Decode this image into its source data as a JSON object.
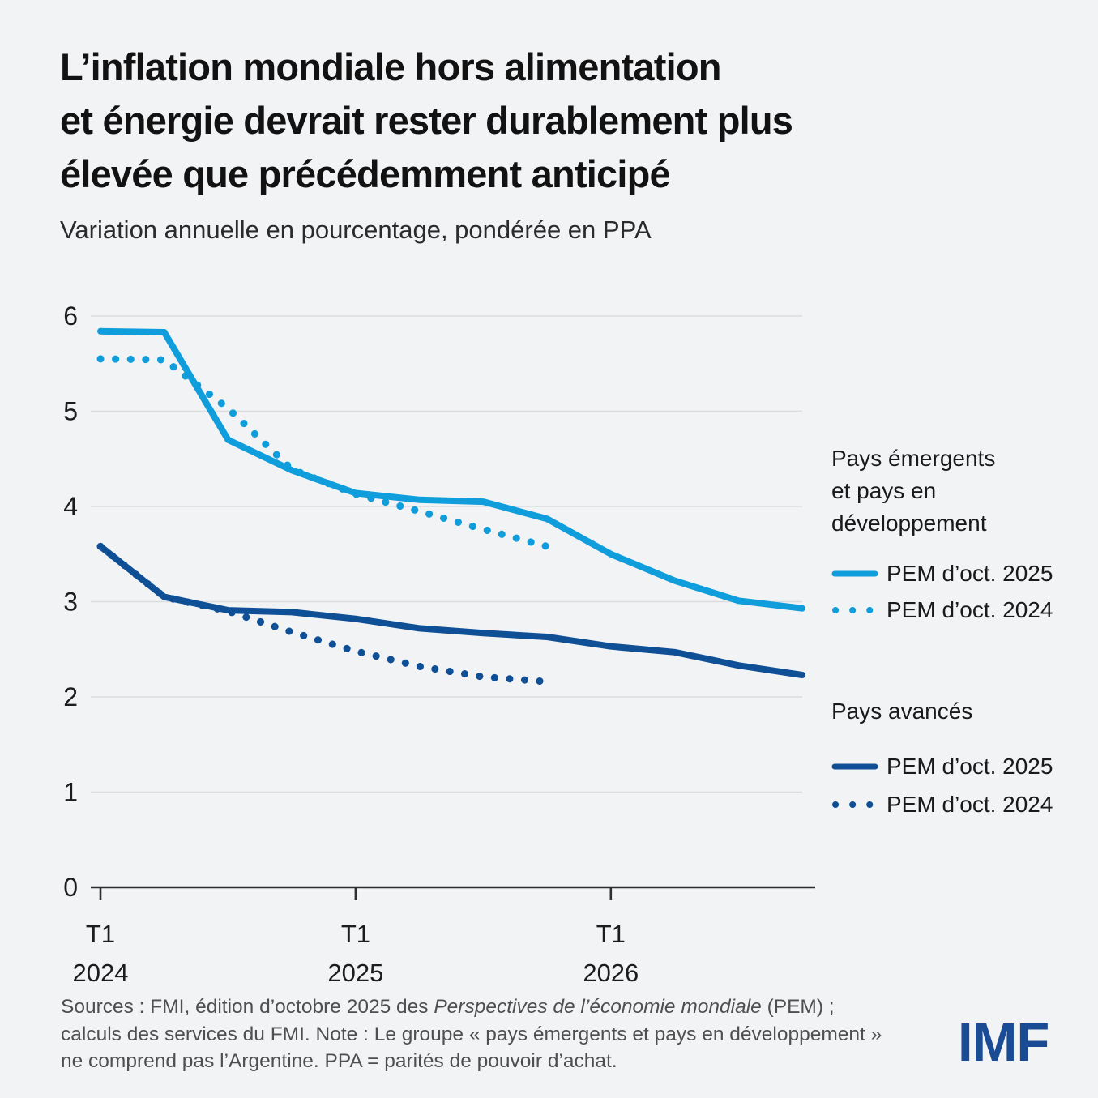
{
  "colors": {
    "background": "#F2F3F5",
    "light_blue": "#0F9DDB",
    "dark_blue": "#0F4F96",
    "imf_blue": "#1A4C96",
    "gridline": "#DBDCDE",
    "axis": "#2E2E2E"
  },
  "header": {
    "title_lines": [
      "L’inflation mondiale hors alimentation",
      "et énergie devrait rester durablement plus",
      "élevée que précédemment anticipé"
    ],
    "subtitle": "Variation annuelle en pourcentage, pondérée en PPA"
  },
  "chart_data": {
    "type": "line",
    "title": "L’inflation mondiale hors alimentation et énergie devrait rester durablement plus élevée que précédemment anticipé",
    "subtitle": "Variation annuelle en pourcentage, pondérée en PPA",
    "xlabel": "",
    "ylabel": "",
    "ylim": [
      0,
      6.3
    ],
    "yticks": [
      0,
      1,
      2,
      3,
      4,
      5,
      6
    ],
    "grid": true,
    "legend_position": "right",
    "categories": [
      "T1 2024",
      "T2 2024",
      "T3 2024",
      "T4 2024",
      "T1 2025",
      "T2 2025",
      "T3 2025",
      "T4 2025",
      "T1 2026",
      "T2 2026",
      "T3 2026",
      "T4 2026"
    ],
    "xticks": [
      {
        "index": 0,
        "line1": "T1",
        "line2": "2024"
      },
      {
        "index": 4,
        "line1": "T1",
        "line2": "2025"
      },
      {
        "index": 8,
        "line1": "T1",
        "line2": "2026"
      }
    ],
    "series": [
      {
        "name": "Pays émergents et pays en développement — PEM d’oct. 2025",
        "group": "emerging",
        "style": "solid",
        "color": "#0F9DDB",
        "values": [
          5.84,
          5.83,
          4.7,
          4.38,
          4.14,
          4.07,
          4.05,
          3.87,
          3.5,
          3.22,
          3.01,
          2.93
        ]
      },
      {
        "name": "Pays émergents et pays en développement — PEM d’oct. 2024",
        "group": "emerging",
        "style": "dotted",
        "color": "#0F9DDB",
        "values": [
          5.55,
          5.54,
          5.03,
          4.39,
          4.13,
          3.95,
          3.76,
          3.58
        ]
      },
      {
        "name": "Pays avancés — PEM d’oct. 2025",
        "group": "advanced",
        "style": "solid",
        "color": "#0F4F96",
        "values": [
          3.58,
          3.05,
          2.91,
          2.89,
          2.82,
          2.72,
          2.67,
          2.63,
          2.53,
          2.47,
          2.33,
          2.23
        ]
      },
      {
        "name": "Pays avancés — PEM d’oct. 2024",
        "group": "advanced",
        "style": "dotted",
        "color": "#0F4F96",
        "values": [
          3.58,
          3.05,
          2.9,
          2.68,
          2.48,
          2.32,
          2.21,
          2.16
        ]
      }
    ]
  },
  "legend": {
    "groups": [
      {
        "title_lines": [
          "Pays émergents",
          "et pays en",
          "développement"
        ],
        "color": "#0F9DDB",
        "items": [
          {
            "label": "PEM d’oct. 2025",
            "style": "solid"
          },
          {
            "label": "PEM d’oct. 2024",
            "style": "dotted"
          }
        ]
      },
      {
        "title_lines": [
          "Pays avancés"
        ],
        "color": "#0F4F96",
        "items": [
          {
            "label": "PEM d’oct. 2025",
            "style": "solid"
          },
          {
            "label": "PEM d’oct. 2024",
            "style": "dotted"
          }
        ]
      }
    ]
  },
  "footer": {
    "source_prefix": "Sources : FMI, édition d’octobre 2025 des ",
    "source_italic": "Perspectives de l’économie mondiale",
    "source_suffix": " (PEM) ; calculs des services du FMI. Note : Le groupe « pays émergents et pays en développement » ne comprend pas l’Argentine. PPA = parités de pouvoir d’achat.",
    "logo": "IMF"
  }
}
